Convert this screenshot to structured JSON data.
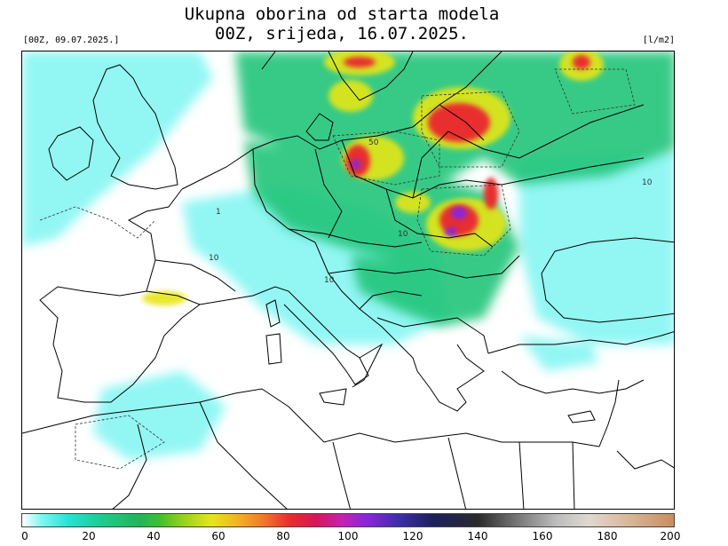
{
  "title_line1": "Ukupna oborina od starta modela",
  "title_line2": "00Z, srijeda, 16.07.2025.",
  "run_label": "[00Z, 09.07.2025.]",
  "unit_label": "[l/m2]",
  "colorbar": {
    "min": 0,
    "max": 200,
    "ticks": [
      "0",
      "20",
      "40",
      "60",
      "80",
      "100",
      "120",
      "140",
      "160",
      "180",
      "200"
    ]
  },
  "contour_labels": [
    "50",
    "10",
    "10",
    "10",
    "10",
    "1"
  ],
  "colors": {
    "land": "#ffffff",
    "sea": "#ffffff",
    "border": "#000000",
    "light_precip": "#7ff5f2",
    "moderate_precip": "#21c57a",
    "heavy_precip": "#e6e619",
    "very_heavy_precip": "#e82d2d",
    "extreme_precip": "#8a25d8"
  }
}
